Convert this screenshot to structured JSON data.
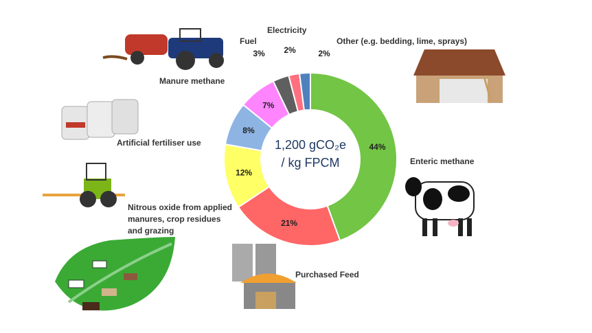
{
  "chart_data": {
    "type": "donut",
    "center_label": [
      "1,200 gCO₂e",
      "/ kg FPCM"
    ],
    "categories": [
      "Enteric methane",
      "Purchased Feed",
      "Nitrous oxide from applied manures, crop residues and grazing",
      "Artificial fertiliser use",
      "Manure methane",
      "Fuel",
      "Electricity",
      "Other (e.g. bedding, lime, sprays)"
    ],
    "values": [
      44,
      21,
      12,
      8,
      7,
      3,
      2,
      2
    ],
    "value_labels": [
      "44%",
      "21%",
      "12%",
      "8%",
      "7%",
      "3%",
      "2%",
      "2%"
    ],
    "colors": [
      "#72c545",
      "#ff6666",
      "#ffff66",
      "#8eb4e3",
      "#ff85ff",
      "#5f5f5f",
      "#ff6f80",
      "#4f81bd"
    ]
  }
}
